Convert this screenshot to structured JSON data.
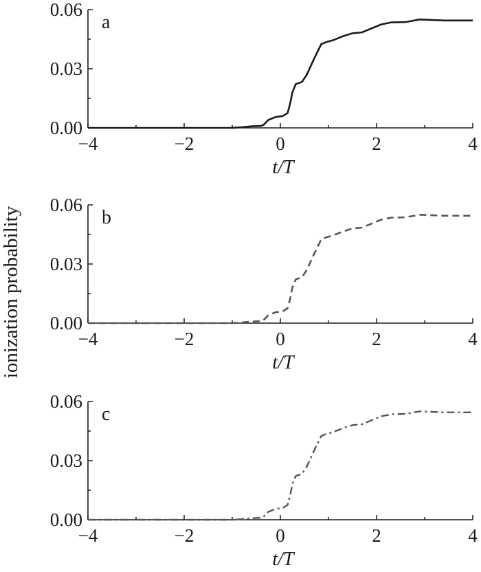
{
  "chart_data": {
    "ylabel": "ionization probability",
    "panels": [
      {
        "type": "line",
        "label": "a",
        "xlabel": "t/T",
        "xlim": [
          -4,
          4
        ],
        "ylim": [
          0,
          0.06
        ],
        "xticks": [
          -4,
          -2,
          0,
          2,
          4
        ],
        "xtick_labels": [
          "−4",
          "−2",
          "0",
          "2",
          "4"
        ],
        "yticks": [
          0,
          0.03,
          0.06
        ],
        "ytick_labels": [
          "0.00",
          "0.03",
          "0.06"
        ],
        "series": [
          {
            "line_style": "solid",
            "color": "#1a1a1a",
            "x": [
              -4.0,
              -1.0,
              -0.8,
              -0.6,
              -0.4,
              -0.35,
              -0.25,
              -0.1,
              0.05,
              0.15,
              0.2,
              0.25,
              0.32,
              0.45,
              0.55,
              0.7,
              0.85,
              0.95,
              1.1,
              1.3,
              1.5,
              1.7,
              1.9,
              2.1,
              2.3,
              2.6,
              2.9,
              3.1,
              3.4,
              3.7,
              4.0
            ],
            "y": [
              0.0,
              0.0,
              0.0003,
              0.0008,
              0.001,
              0.0015,
              0.004,
              0.0055,
              0.006,
              0.0075,
              0.012,
              0.018,
              0.0222,
              0.0233,
              0.027,
              0.035,
              0.0425,
              0.0435,
              0.0445,
              0.0465,
              0.048,
              0.0485,
              0.0505,
              0.0525,
              0.0535,
              0.0537,
              0.055,
              0.0548,
              0.0545,
              0.0545,
              0.0545
            ]
          }
        ]
      },
      {
        "type": "line",
        "label": "b",
        "xlabel": "t/T",
        "xlim": [
          -4,
          4
        ],
        "ylim": [
          0,
          0.06
        ],
        "xticks": [
          -4,
          -2,
          0,
          2,
          4
        ],
        "xtick_labels": [
          "−4",
          "−2",
          "0",
          "2",
          "4"
        ],
        "yticks": [
          0,
          0.03,
          0.06
        ],
        "ytick_labels": [
          "0.00",
          "0.03",
          "0.06"
        ],
        "series": [
          {
            "line_style": "dashed",
            "color": "#555555",
            "x": [
              -4.0,
              -1.0,
              -0.8,
              -0.6,
              -0.4,
              -0.35,
              -0.25,
              -0.1,
              0.05,
              0.15,
              0.2,
              0.25,
              0.32,
              0.45,
              0.55,
              0.7,
              0.85,
              0.95,
              1.1,
              1.3,
              1.5,
              1.7,
              1.9,
              2.1,
              2.3,
              2.6,
              2.9,
              3.1,
              3.4,
              3.7,
              4.0
            ],
            "y": [
              0.0,
              0.0,
              0.0003,
              0.0008,
              0.001,
              0.0015,
              0.004,
              0.0055,
              0.006,
              0.0075,
              0.012,
              0.018,
              0.0222,
              0.0233,
              0.027,
              0.035,
              0.0425,
              0.0435,
              0.0445,
              0.0465,
              0.048,
              0.0485,
              0.0505,
              0.0525,
              0.0535,
              0.0537,
              0.055,
              0.0548,
              0.0545,
              0.0545,
              0.0545
            ]
          }
        ]
      },
      {
        "type": "line",
        "label": "c",
        "xlabel": "t/T",
        "xlim": [
          -4,
          4
        ],
        "ylim": [
          0,
          0.06
        ],
        "xticks": [
          -4,
          -2,
          0,
          2,
          4
        ],
        "xtick_labels": [
          "−4",
          "−2",
          "0",
          "2",
          "4"
        ],
        "yticks": [
          0,
          0.03,
          0.06
        ],
        "ytick_labels": [
          "0.00",
          "0.03",
          "0.06"
        ],
        "series": [
          {
            "line_style": "dash-dot",
            "color": "#555555",
            "x": [
              -4.0,
              -1.0,
              -0.8,
              -0.6,
              -0.4,
              -0.35,
              -0.25,
              -0.1,
              0.05,
              0.15,
              0.2,
              0.25,
              0.32,
              0.45,
              0.55,
              0.7,
              0.85,
              0.95,
              1.1,
              1.3,
              1.5,
              1.7,
              1.9,
              2.1,
              2.3,
              2.6,
              2.9,
              3.1,
              3.4,
              3.7,
              4.0
            ],
            "y": [
              0.0,
              0.0,
              0.0003,
              0.0008,
              0.001,
              0.0015,
              0.004,
              0.0055,
              0.006,
              0.0075,
              0.012,
              0.018,
              0.0222,
              0.0233,
              0.027,
              0.035,
              0.0425,
              0.0435,
              0.0445,
              0.0465,
              0.048,
              0.0485,
              0.0505,
              0.0525,
              0.0535,
              0.0537,
              0.055,
              0.0548,
              0.0545,
              0.0545,
              0.0545
            ]
          }
        ]
      }
    ]
  }
}
